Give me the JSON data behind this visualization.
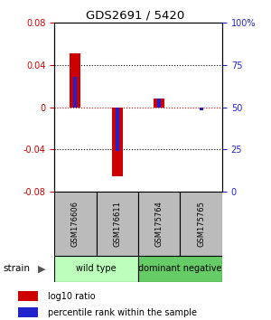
{
  "title": "GDS2691 / 5420",
  "samples": [
    "GSM176606",
    "GSM176611",
    "GSM175764",
    "GSM175765"
  ],
  "red_values": [
    0.051,
    -0.065,
    0.008,
    0.0
  ],
  "blue_values_pct": [
    68,
    24,
    55,
    48
  ],
  "ylim": [
    -0.08,
    0.08
  ],
  "yticks_left": [
    -0.08,
    -0.04,
    0,
    0.04,
    0.08
  ],
  "yticks_right_pct": [
    0,
    25,
    50,
    75,
    100
  ],
  "red_bar_width": 0.25,
  "blue_bar_width": 0.08,
  "red_color": "#cc0000",
  "blue_color": "#2222cc",
  "zero_line_color": "#cc0000",
  "sample_box_color": "#bbbbbb",
  "groups": [
    {
      "label": "wild type",
      "samples": [
        0,
        1
      ],
      "color": "#bbffbb"
    },
    {
      "label": "dominant negative",
      "samples": [
        2,
        3
      ],
      "color": "#66cc66"
    }
  ],
  "strain_label": "strain",
  "legend": [
    {
      "color": "#cc0000",
      "label": "log10 ratio"
    },
    {
      "color": "#2222cc",
      "label": "percentile rank within the sample"
    }
  ]
}
